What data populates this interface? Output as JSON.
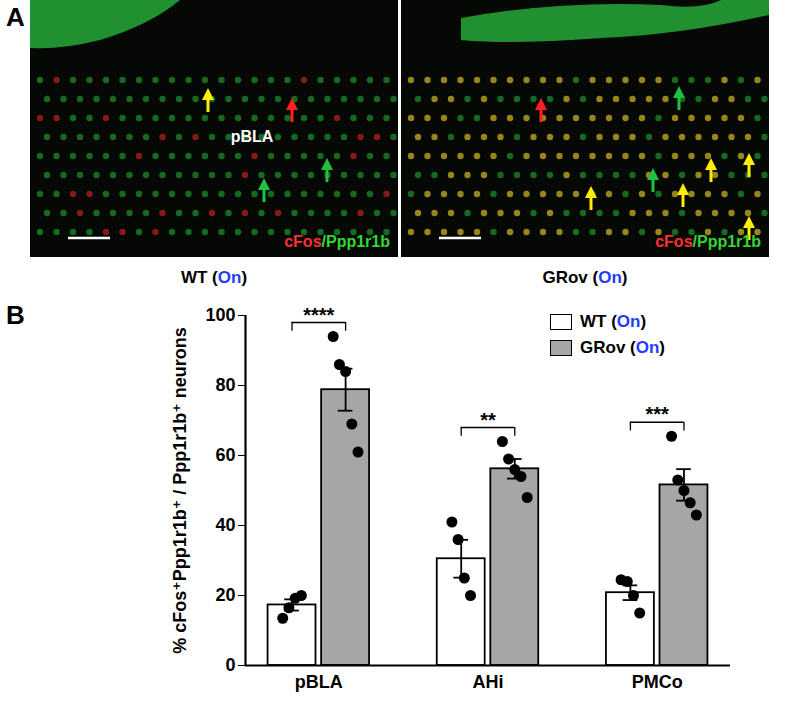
{
  "chart_data": {
    "type": "bar",
    "panel_label": "B",
    "categories": [
      "pBLA",
      "AHi",
      "PMCo"
    ],
    "y_label": "% cFos⁺Ppp1r1b⁺ / Ppp1r1b⁺ neurons",
    "ylim": [
      0,
      100
    ],
    "yticks": [
      0,
      20,
      40,
      60,
      80,
      100
    ],
    "legend": "top-right",
    "series": [
      {
        "name": "WT (On)",
        "color": "#ffffff",
        "values": [
          17.3,
          30.5,
          20.8
        ],
        "errors": [
          1.6,
          5.4,
          2.1
        ],
        "points": [
          [
            13.5,
            16.5,
            19.2,
            20
          ],
          [
            41,
            36,
            25,
            20
          ],
          [
            24.5,
            24,
            20,
            15
          ]
        ]
      },
      {
        "name": "GRov (On)",
        "color": "#a6a6a6",
        "values": [
          78.8,
          56.2,
          51.6
        ],
        "errors": [
          6.0,
          2.8,
          4.5
        ],
        "points": [
          [
            94,
            86,
            84,
            69,
            61
          ],
          [
            64,
            59,
            56,
            54,
            48
          ],
          [
            65.5,
            53,
            50,
            46.5,
            43
          ]
        ]
      }
    ],
    "significance": [
      {
        "category": "pBLA",
        "text": "****"
      },
      {
        "category": "AHi",
        "text": "**"
      },
      {
        "category": "PMCo",
        "text": "***"
      }
    ]
  },
  "panel_a": {
    "label": "A",
    "images": [
      {
        "caption": "WT (On)",
        "region_label": "pBLA",
        "stain": [
          {
            "text": "cFos",
            "color": "#ff3030"
          },
          {
            "text": "/Ppp1r1b",
            "color": "#33d633"
          }
        ]
      },
      {
        "caption": "GRov (On)",
        "stain": [
          {
            "text": "cFos",
            "color": "#ff3030"
          },
          {
            "text": "/Ppp1r1b",
            "color": "#33d633"
          }
        ]
      }
    ]
  }
}
